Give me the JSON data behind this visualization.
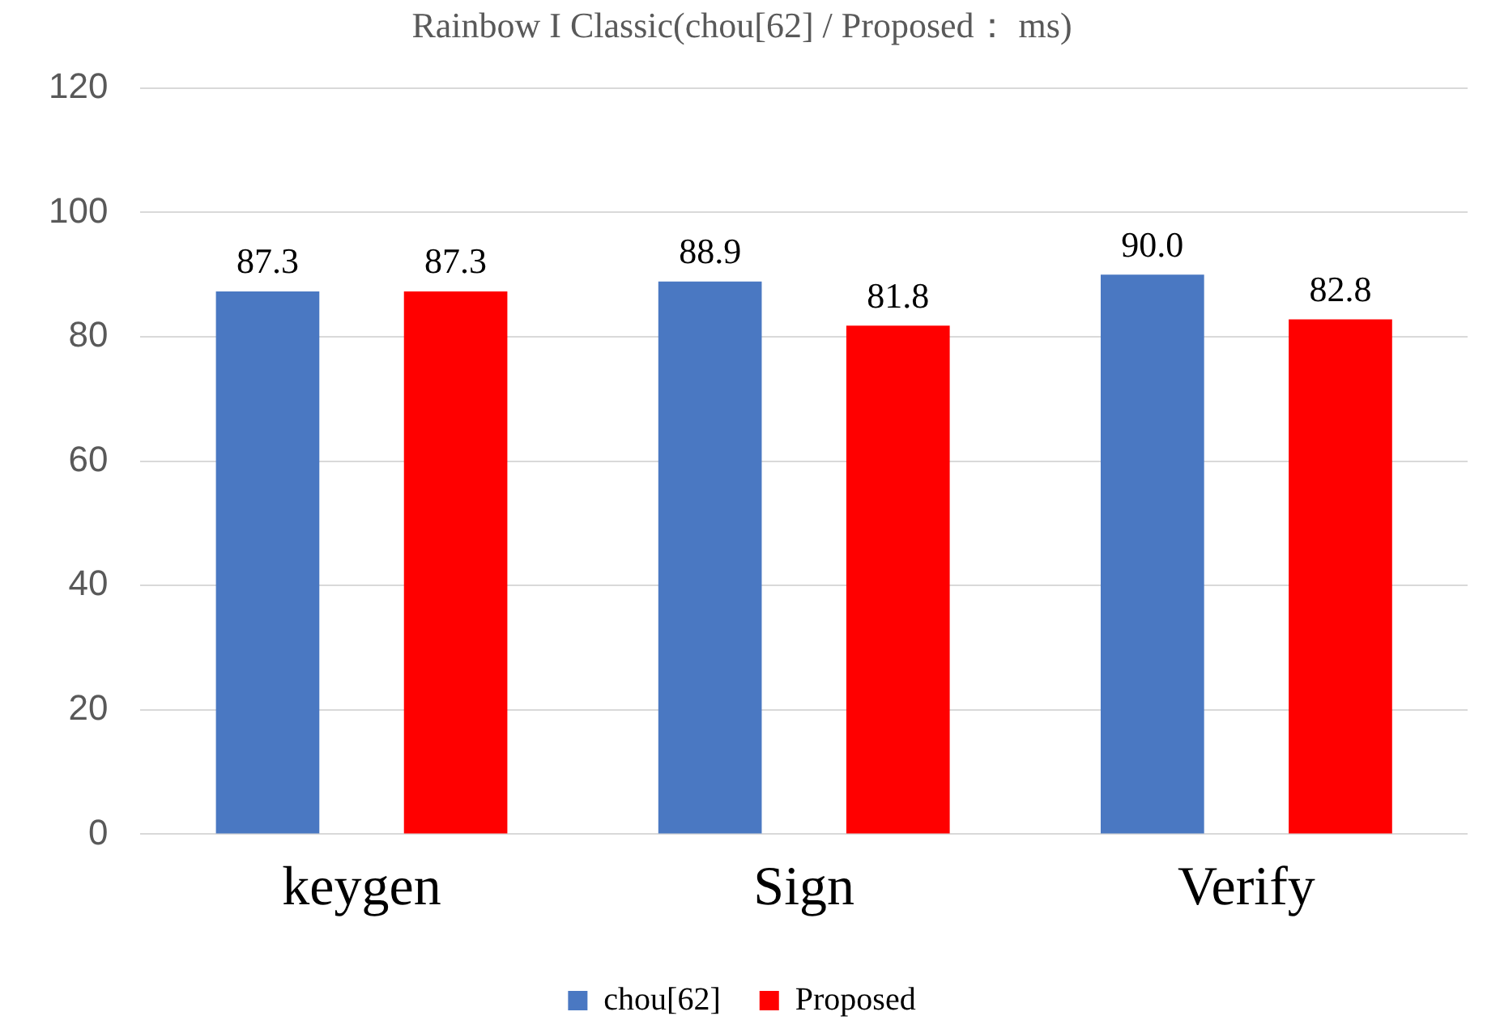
{
  "chart_data": {
    "type": "bar",
    "title": "Rainbow I Classic(chou[62] / Proposed： ms)",
    "categories": [
      "keygen",
      "Sign",
      "Verify"
    ],
    "series": [
      {
        "name": "chou[62]",
        "color": "#4a78c2",
        "values": [
          87.3,
          88.9,
          90.0
        ],
        "value_labels": [
          "87.3",
          "88.9",
          "90.0"
        ]
      },
      {
        "name": "Proposed",
        "color": "#ff0000",
        "values": [
          87.3,
          81.8,
          82.8
        ],
        "value_labels": [
          "87.3",
          "81.8",
          "82.8"
        ]
      }
    ],
    "ylim": [
      0,
      120
    ],
    "yticks": [
      0,
      20,
      40,
      60,
      80,
      100,
      120
    ],
    "grid": "y",
    "legend": "bottom"
  }
}
